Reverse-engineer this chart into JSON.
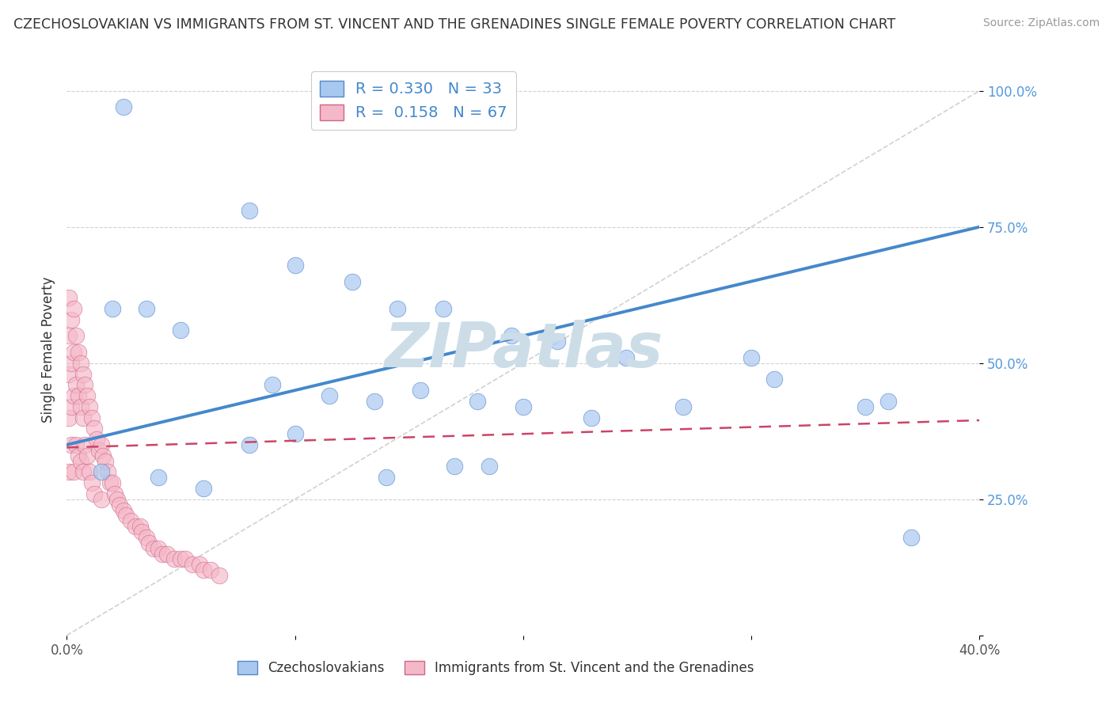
{
  "title": "CZECHOSLOVAKIAN VS IMMIGRANTS FROM ST. VINCENT AND THE GRENADINES SINGLE FEMALE POVERTY CORRELATION CHART",
  "source": "Source: ZipAtlas.com",
  "ylabel": "Single Female Poverty",
  "xlim": [
    0.0,
    0.4
  ],
  "ylim": [
    0.0,
    1.05
  ],
  "blue_R": 0.33,
  "blue_N": 33,
  "pink_R": 0.158,
  "pink_N": 67,
  "blue_color": "#a8c8f0",
  "pink_color": "#f5b8c8",
  "blue_edge_color": "#5588cc",
  "pink_edge_color": "#cc6688",
  "blue_line_color": "#4488cc",
  "pink_line_color": "#cc4466",
  "ref_line_color": "#cccccc",
  "watermark": "ZIPatlas",
  "watermark_color": "#ccdde8",
  "legend_label_blue": "Czechoslovakians",
  "legend_label_pink": "Immigrants from St. Vincent and the Grenadines",
  "blue_line_x0": 0.0,
  "blue_line_y0": 0.35,
  "blue_line_x1": 0.4,
  "blue_line_y1": 0.75,
  "pink_line_x0": 0.0,
  "pink_line_y0": 0.345,
  "pink_line_x1": 0.4,
  "pink_line_y1": 0.395,
  "blue_scatter_x": [
    0.025,
    0.08,
    0.1,
    0.125,
    0.145,
    0.165,
    0.195,
    0.215,
    0.245,
    0.27,
    0.3,
    0.35,
    0.36,
    0.02,
    0.035,
    0.05,
    0.09,
    0.115,
    0.135,
    0.155,
    0.18,
    0.2,
    0.23,
    0.015,
    0.08,
    0.17,
    0.04,
    0.06,
    0.1,
    0.14,
    0.185,
    0.31,
    0.37
  ],
  "blue_scatter_y": [
    0.97,
    0.78,
    0.68,
    0.65,
    0.6,
    0.6,
    0.55,
    0.54,
    0.51,
    0.42,
    0.51,
    0.42,
    0.43,
    0.6,
    0.6,
    0.56,
    0.46,
    0.44,
    0.43,
    0.45,
    0.43,
    0.42,
    0.4,
    0.3,
    0.35,
    0.31,
    0.29,
    0.27,
    0.37,
    0.29,
    0.31,
    0.47,
    0.18
  ],
  "pink_scatter_x": [
    0.001,
    0.001,
    0.001,
    0.001,
    0.001,
    0.002,
    0.002,
    0.002,
    0.002,
    0.003,
    0.003,
    0.003,
    0.003,
    0.004,
    0.004,
    0.004,
    0.005,
    0.005,
    0.005,
    0.006,
    0.006,
    0.006,
    0.007,
    0.007,
    0.007,
    0.008,
    0.008,
    0.009,
    0.009,
    0.01,
    0.01,
    0.011,
    0.011,
    0.012,
    0.012,
    0.013,
    0.014,
    0.015,
    0.015,
    0.016,
    0.017,
    0.018,
    0.019,
    0.02,
    0.021,
    0.022,
    0.023,
    0.025,
    0.026,
    0.028,
    0.03,
    0.032,
    0.033,
    0.035,
    0.036,
    0.038,
    0.04,
    0.042,
    0.044,
    0.047,
    0.05,
    0.052,
    0.055,
    0.058,
    0.06,
    0.063,
    0.067
  ],
  "pink_scatter_y": [
    0.62,
    0.55,
    0.48,
    0.4,
    0.3,
    0.58,
    0.5,
    0.42,
    0.35,
    0.6,
    0.52,
    0.44,
    0.3,
    0.55,
    0.46,
    0.35,
    0.52,
    0.44,
    0.33,
    0.5,
    0.42,
    0.32,
    0.48,
    0.4,
    0.3,
    0.46,
    0.35,
    0.44,
    0.33,
    0.42,
    0.3,
    0.4,
    0.28,
    0.38,
    0.26,
    0.36,
    0.34,
    0.35,
    0.25,
    0.33,
    0.32,
    0.3,
    0.28,
    0.28,
    0.26,
    0.25,
    0.24,
    0.23,
    0.22,
    0.21,
    0.2,
    0.2,
    0.19,
    0.18,
    0.17,
    0.16,
    0.16,
    0.15,
    0.15,
    0.14,
    0.14,
    0.14,
    0.13,
    0.13,
    0.12,
    0.12,
    0.11
  ]
}
